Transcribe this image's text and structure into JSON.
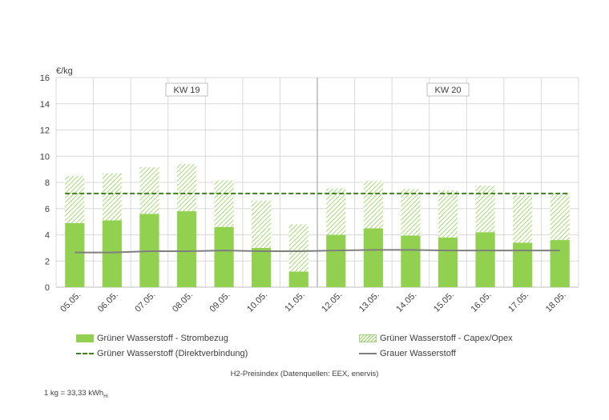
{
  "chart_data": {
    "type": "bar",
    "ylabel": "€/kg",
    "ylim": [
      0,
      16
    ],
    "yticks": [
      0,
      2,
      4,
      6,
      8,
      10,
      12,
      14,
      16
    ],
    "grid": true,
    "categories": [
      "05.05.",
      "06.05.",
      "07.05.",
      "08.05.",
      "09.05.",
      "10.05.",
      "11.05.",
      "12.05.",
      "13.05.",
      "14.05.",
      "15.05.",
      "16.05.",
      "17.05.",
      "18.05."
    ],
    "week_labels": [
      "KW 19",
      "KW 20"
    ],
    "week_split_after": "11.05.",
    "series": [
      {
        "name": "Grüner Wasserstoff - Strombezug",
        "kind": "bar-stacked",
        "color": "#92d050",
        "values": [
          4.9,
          5.1,
          5.6,
          5.8,
          4.6,
          3.0,
          1.2,
          4.0,
          4.5,
          3.95,
          3.8,
          4.2,
          3.4,
          3.6
        ]
      },
      {
        "name": "Grüner Wasserstoff - Capex/Opex",
        "kind": "bar-stacked-hatched",
        "color": "#92d050",
        "values": [
          3.6,
          3.6,
          3.55,
          3.6,
          3.55,
          3.6,
          3.6,
          3.55,
          3.6,
          3.55,
          3.6,
          3.55,
          3.6,
          3.55
        ]
      },
      {
        "name": "Grüner Wasserstoff (Direktverbindung)",
        "kind": "line-dashed",
        "color": "#3f7f1f",
        "values": [
          7.15,
          7.15,
          7.15,
          7.15,
          7.15,
          7.15,
          7.15,
          7.15,
          7.15,
          7.15,
          7.15,
          7.15,
          7.15,
          7.15
        ]
      },
      {
        "name": "Grauer Wasserstoff",
        "kind": "line",
        "color": "#7f7f7f",
        "values": [
          2.65,
          2.65,
          2.75,
          2.75,
          2.8,
          2.75,
          2.75,
          2.8,
          2.85,
          2.85,
          2.8,
          2.8,
          2.8,
          2.8
        ]
      }
    ],
    "legend_position": "bottom"
  },
  "caption": "H2-Preisindex (Datenquellen: EEX, enervis)",
  "footnote": {
    "text": "1 kg = 33,33 kWh",
    "subscript": "Hi"
  }
}
